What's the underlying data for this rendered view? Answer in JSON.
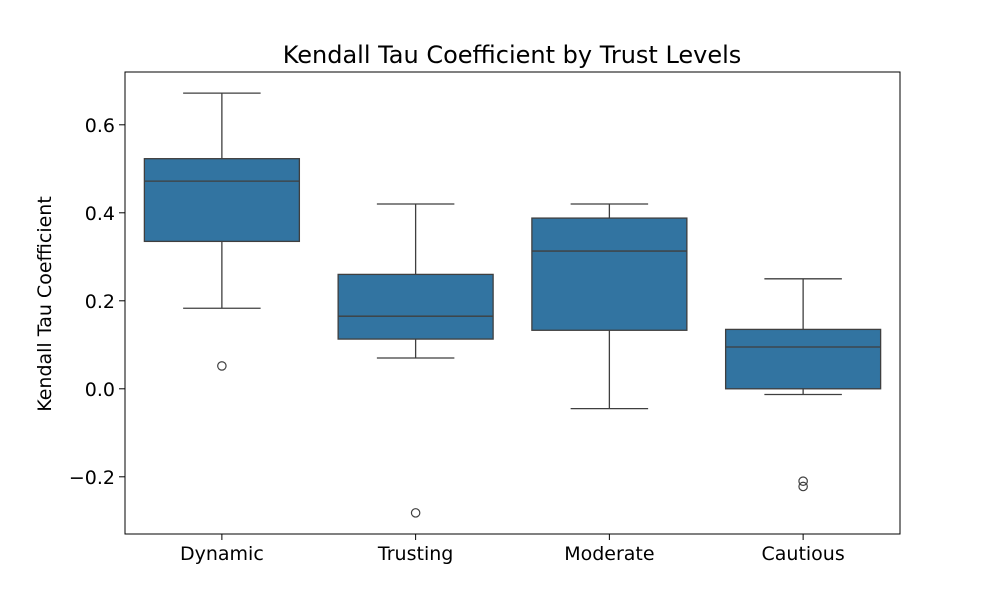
{
  "chart_data": {
    "type": "box",
    "title": "Kendall Tau Coefficient by Trust Levels",
    "xlabel": "",
    "ylabel": "Kendall Tau Coefficient",
    "ylim": [
      -0.33,
      0.72
    ],
    "yticks": [
      -0.2,
      0.0,
      0.2,
      0.4,
      0.6
    ],
    "ytick_labels": [
      "−0.2",
      "0.0",
      "0.2",
      "0.4",
      "0.6"
    ],
    "categories": [
      "Dynamic",
      "Trusting",
      "Moderate",
      "Cautious"
    ],
    "grid": false,
    "box_color": "#3274a1",
    "line_color": "#3f3f3f",
    "boxes": [
      {
        "category": "Dynamic",
        "whisker_low": 0.183,
        "q1": 0.335,
        "median": 0.472,
        "q3": 0.523,
        "whisker_high": 0.672,
        "outliers": [
          0.052
        ]
      },
      {
        "category": "Trusting",
        "whisker_low": 0.07,
        "q1": 0.113,
        "median": 0.165,
        "q3": 0.26,
        "whisker_high": 0.42,
        "outliers": [
          -0.282
        ]
      },
      {
        "category": "Moderate",
        "whisker_low": -0.045,
        "q1": 0.133,
        "median": 0.313,
        "q3": 0.388,
        "whisker_high": 0.42,
        "outliers": []
      },
      {
        "category": "Cautious",
        "whisker_low": -0.013,
        "q1": 0.0,
        "median": 0.095,
        "q3": 0.135,
        "whisker_high": 0.25,
        "outliers": [
          -0.21,
          -0.222
        ]
      }
    ]
  }
}
